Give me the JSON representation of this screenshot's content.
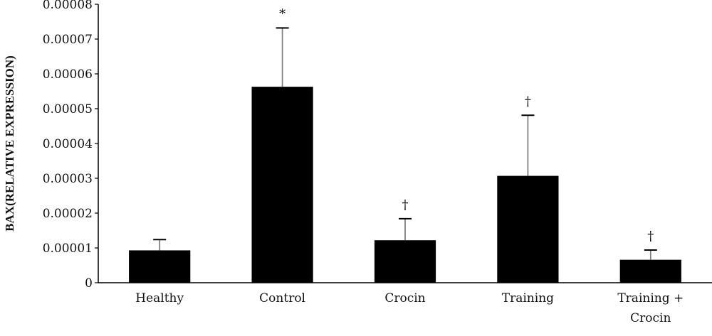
{
  "chart_data": {
    "type": "bar",
    "title": "",
    "xlabel": "",
    "ylabel": "BAX(RELATIVE EXPRESSION)",
    "ylim": [
      0,
      8e-05
    ],
    "yticks": [
      "0",
      "0.00001",
      "0.00002",
      "0.00003",
      "0.00004",
      "0.00005",
      "0.00006",
      "0.00007",
      "0.00008"
    ],
    "categories": [
      {
        "lines": [
          "Healthy"
        ]
      },
      {
        "lines": [
          "Control"
        ]
      },
      {
        "lines": [
          "Crocin"
        ]
      },
      {
        "lines": [
          "Training"
        ]
      },
      {
        "lines": [
          "Training +",
          "Crocin"
        ]
      }
    ],
    "values": [
      9.3e-06,
      5.63e-05,
      1.22e-05,
      3.07e-05,
      6.6e-06
    ],
    "error_upper": [
      1.24e-05,
      7.32e-05,
      1.84e-05,
      4.81e-05,
      9.4e-06
    ],
    "significance": [
      "",
      "*",
      "†",
      "†",
      "†"
    ],
    "grid": false,
    "colors": {
      "bar": "#000000",
      "error_bar": "#808080",
      "axis": "#000000"
    }
  }
}
